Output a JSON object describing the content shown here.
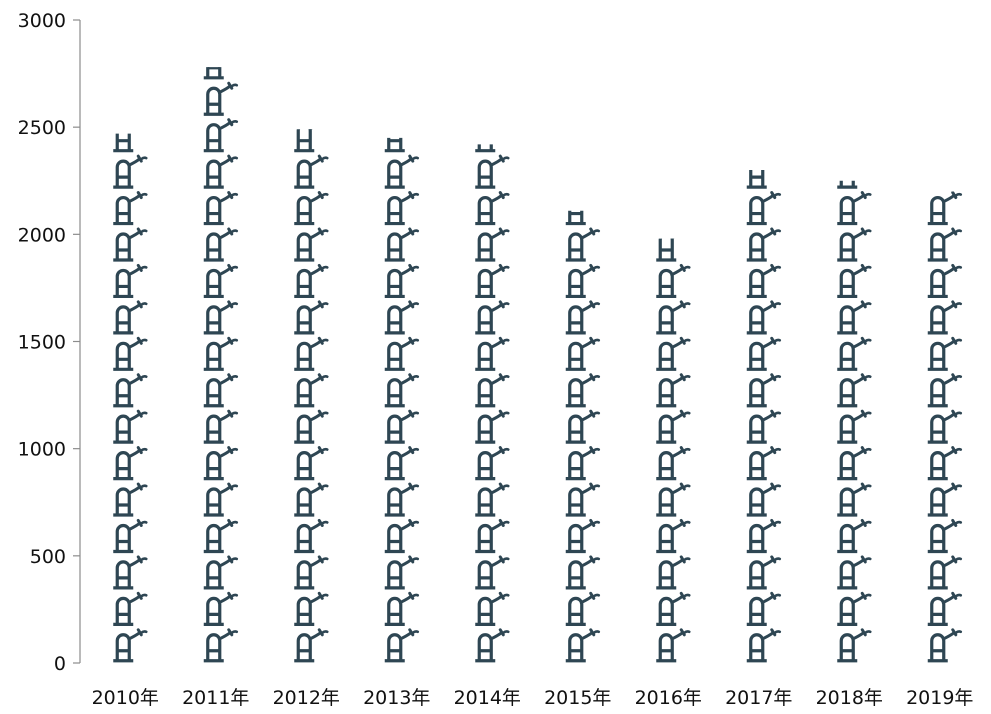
{
  "chart_data": {
    "type": "bar",
    "style": "pictograph",
    "icon": "faucet-icon",
    "icon_unit": 170,
    "title": "",
    "xlabel": "",
    "ylabel": "",
    "categories": [
      "2010年",
      "2011年",
      "2012年",
      "2013年",
      "2014年",
      "2015年",
      "2016年",
      "2017年",
      "2018年",
      "2019年"
    ],
    "values": [
      2470,
      2780,
      2490,
      2450,
      2420,
      2110,
      1980,
      2300,
      2250,
      2200
    ],
    "ylim": [
      0,
      3000
    ],
    "yticks": [
      "0",
      "500",
      "1000",
      "1500",
      "2000",
      "2500",
      "3000"
    ],
    "grid": false,
    "legend": "none",
    "colors": {
      "icon": "#2e4653",
      "axis": "#8c8c8c",
      "text": "#111111"
    }
  }
}
